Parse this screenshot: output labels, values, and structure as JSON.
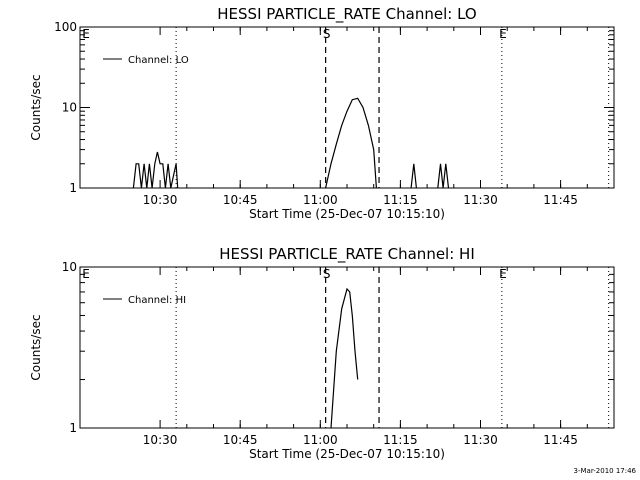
{
  "chart_data": [
    {
      "type": "line",
      "title": "HESSI PARTICLE_RATE Channel: LO",
      "xlabel": "Start Time (25-Dec-07 10:15:10)",
      "ylabel": "Counts/sec",
      "y_scale": "log",
      "ylim": [
        1,
        100
      ],
      "y_ticks": [
        "1",
        "10",
        "100"
      ],
      "xlim_minutes_after_start": [
        0,
        100
      ],
      "x_ticks": [
        "10:30",
        "10:45",
        "11:00",
        "11:15",
        "11:30",
        "11:45"
      ],
      "legend": {
        "placement": "top-left",
        "entries": [
          "Channel: LO"
        ]
      },
      "markers": [
        {
          "label": "E",
          "time": "10:15",
          "style": "none"
        },
        {
          "label": "",
          "time": "10:33",
          "style": "dotted"
        },
        {
          "label": "S",
          "time": "11:01",
          "style": "dashed"
        },
        {
          "label": "",
          "time": "11:11",
          "style": "dashed"
        },
        {
          "label": "E",
          "time": "11:34",
          "style": "dotted"
        },
        {
          "label": "",
          "time": "11:54",
          "style": "dotted"
        }
      ],
      "series": [
        {
          "name": "Channel: LO",
          "segments": [
            [
              [
                "10:25",
                1
              ],
              [
                "10:25.5",
                2
              ],
              [
                "10:26",
                2
              ],
              [
                "10:26.5",
                1
              ],
              [
                "10:27",
                2
              ],
              [
                "10:27.5",
                1
              ],
              [
                "10:28",
                2
              ],
              [
                "10:28.5",
                1
              ],
              [
                "10:29",
                2
              ],
              [
                "10:29.5",
                2.8
              ],
              [
                "10:30",
                2
              ],
              [
                "10:30.5",
                2
              ],
              [
                "10:31",
                1
              ],
              [
                "10:31.5",
                2
              ],
              [
                "10:32",
                1
              ],
              [
                "10:33",
                2
              ],
              [
                "10:33.3",
                1
              ]
            ],
            [
              [
                "11:01",
                1
              ],
              [
                "11:02",
                2
              ],
              [
                "11:03",
                3.5
              ],
              [
                "11:04",
                6
              ],
              [
                "11:05",
                9
              ],
              [
                "11:06",
                12.5
              ],
              [
                "11:07",
                13
              ],
              [
                "11:08",
                10
              ],
              [
                "11:09",
                6
              ],
              [
                "11:10",
                3
              ],
              [
                "11:10.5",
                1
              ]
            ],
            [
              [
                "11:17",
                1
              ],
              [
                "11:17.5",
                2
              ],
              [
                "11:18",
                1
              ]
            ],
            [
              [
                "11:22",
                1
              ],
              [
                "11:22.5",
                2
              ],
              [
                "11:23",
                1
              ],
              [
                "11:23.5",
                2
              ],
              [
                "11:24",
                1
              ]
            ]
          ]
        }
      ]
    },
    {
      "type": "line",
      "title": "HESSI PARTICLE_RATE Channel: HI",
      "xlabel": "Start Time (25-Dec-07 10:15:10)",
      "ylabel": "Counts/sec",
      "y_scale": "log",
      "ylim": [
        1,
        10
      ],
      "y_ticks": [
        "1",
        "10"
      ],
      "xlim_minutes_after_start": [
        0,
        100
      ],
      "x_ticks": [
        "10:30",
        "10:45",
        "11:00",
        "11:15",
        "11:30",
        "11:45"
      ],
      "legend": {
        "placement": "top-left",
        "entries": [
          "Channel: HI"
        ]
      },
      "markers": [
        {
          "label": "E",
          "time": "10:15",
          "style": "none"
        },
        {
          "label": "",
          "time": "10:33",
          "style": "dotted"
        },
        {
          "label": "S",
          "time": "11:01",
          "style": "dashed"
        },
        {
          "label": "",
          "time": "11:11",
          "style": "dashed"
        },
        {
          "label": "E",
          "time": "11:34",
          "style": "dotted"
        },
        {
          "label": "",
          "time": "11:54",
          "style": "dotted"
        }
      ],
      "series": [
        {
          "name": "Channel: HI",
          "segments": [
            [
              [
                "11:02",
                1
              ],
              [
                "11:03",
                3
              ],
              [
                "11:04",
                5.5
              ],
              [
                "11:05",
                7.3
              ],
              [
                "11:05.5",
                7
              ],
              [
                "11:06",
                5
              ],
              [
                "11:06.5",
                3
              ],
              [
                "11:07",
                2
              ]
            ]
          ]
        }
      ]
    }
  ],
  "footer": {
    "timestamp": "3-Mar-2010 17:46"
  }
}
